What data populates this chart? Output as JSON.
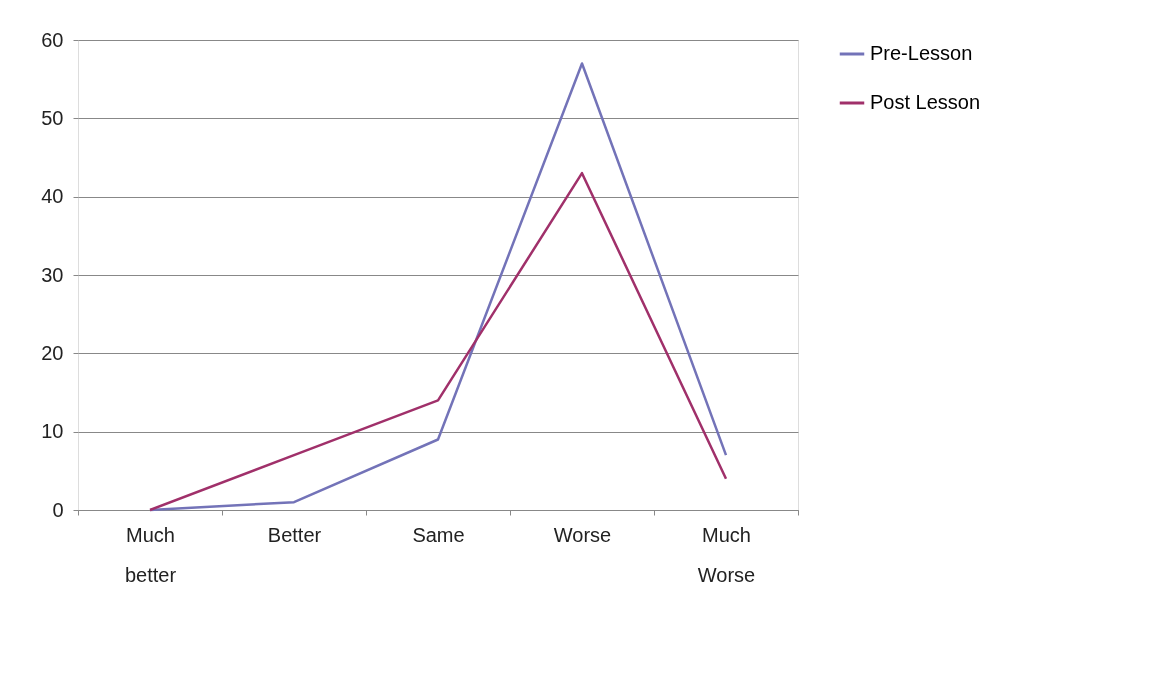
{
  "chart_data": {
    "type": "line",
    "categories": [
      "Much better",
      "Better",
      "Same",
      "Worse",
      "Much Worse"
    ],
    "series": [
      {
        "name": "Pre-Lesson",
        "color": "#7373b8",
        "values": [
          0,
          1,
          9,
          57,
          7
        ]
      },
      {
        "name": "Post Lesson",
        "color": "#a0306a",
        "values": [
          0,
          7,
          14,
          43,
          4
        ]
      }
    ],
    "ylim": [
      0,
      60
    ],
    "yticks": [
      0,
      10,
      20,
      30,
      40,
      50,
      60
    ],
    "grid": "y",
    "legend": "right",
    "marker": "none",
    "line_style": "solid"
  }
}
